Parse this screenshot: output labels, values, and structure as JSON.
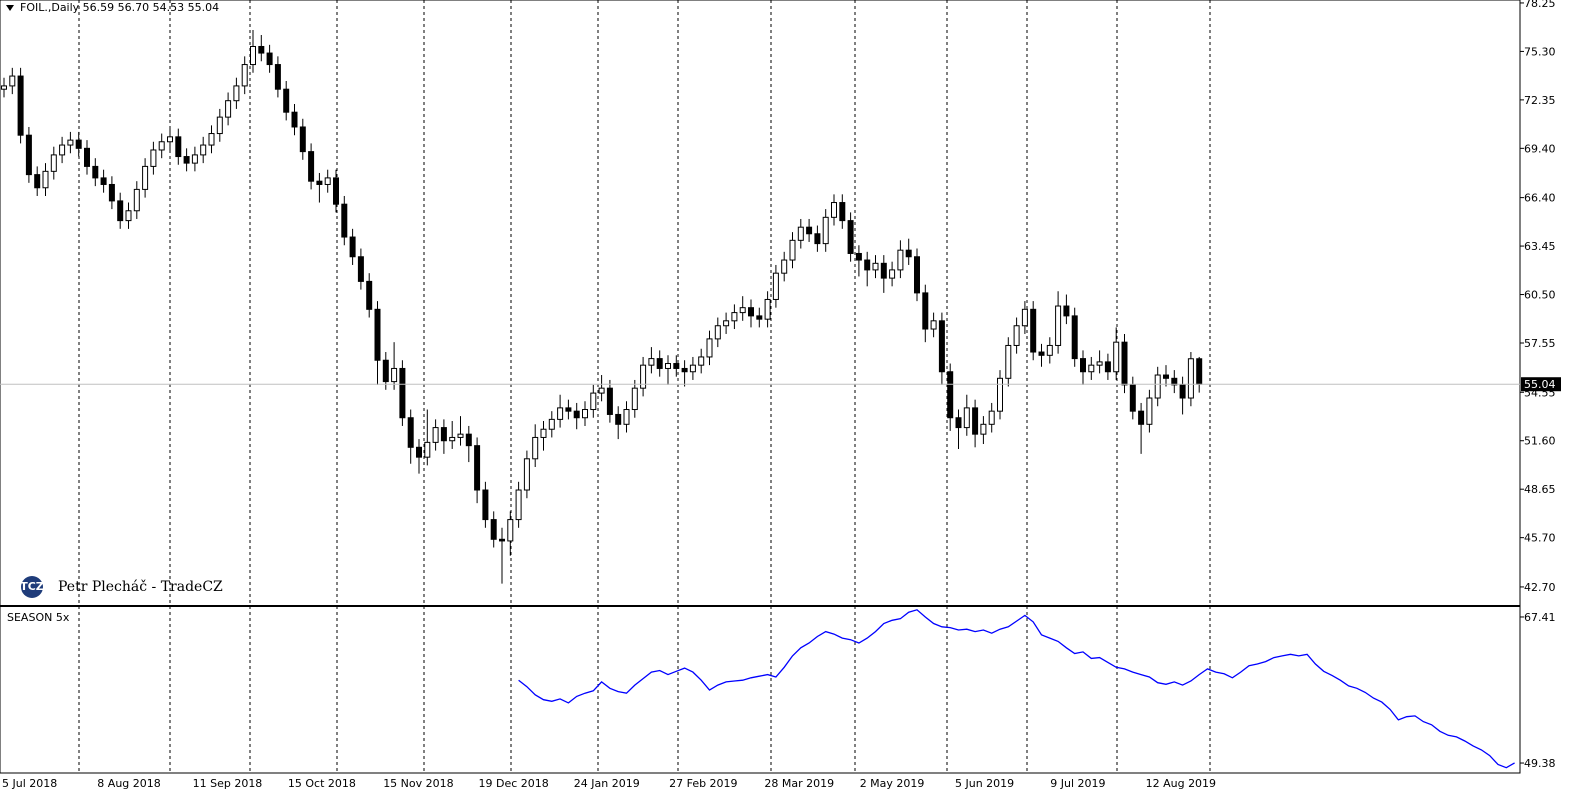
{
  "title": "FOIL.,Daily  56.59 56.70 54.53 55.04",
  "watermark": {
    "logo": "TCZ",
    "text": "Petr Plecháč - TradeCZ"
  },
  "chart_data": [
    {
      "type": "candlestick",
      "open": [
        73.0,
        73.2,
        73.8,
        70.2,
        67.8,
        67.0,
        68.0,
        69.0,
        69.6,
        69.9,
        69.4,
        68.3,
        67.6,
        67.2,
        66.2,
        65.0,
        65.6,
        66.9,
        68.3,
        69.3,
        69.8,
        70.1,
        68.9,
        68.5,
        69.0,
        69.6,
        70.3,
        71.3,
        72.3,
        73.2,
        74.5,
        75.6,
        75.2,
        74.5,
        73.0,
        71.6,
        70.7,
        69.2,
        67.4,
        67.2,
        67.6,
        66.0,
        64.0,
        62.8,
        61.3,
        59.6,
        56.5,
        55.2,
        56.0,
        53.0,
        51.2,
        50.6,
        51.5,
        52.4,
        51.6,
        51.8,
        52.0,
        51.3,
        48.6,
        46.8,
        45.6,
        45.5,
        46.8,
        48.6,
        50.5,
        51.8,
        52.3,
        52.9,
        53.6,
        53.4,
        53.0,
        53.5,
        54.5,
        54.8,
        53.2,
        52.6,
        53.5,
        54.8,
        56.2,
        56.6,
        56.0,
        56.3,
        56.0,
        55.8,
        56.2,
        56.7,
        57.8,
        58.6,
        58.9,
        59.4,
        59.7,
        59.2,
        59.0,
        60.2,
        61.8,
        62.6,
        63.8,
        64.6,
        64.2,
        63.6,
        65.2,
        66.1,
        65.0,
        63.0,
        62.6,
        62.0,
        62.4,
        61.5,
        62.0,
        63.2,
        62.8,
        60.6,
        58.4,
        58.9,
        55.8,
        53.0,
        52.4,
        53.6,
        52.0,
        52.6,
        53.4,
        55.4,
        57.4,
        58.6,
        59.6,
        57.0,
        56.8,
        57.4,
        59.8,
        59.2,
        56.6,
        55.8,
        56.2,
        56.4,
        55.8,
        57.6,
        55.0,
        53.4,
        52.6,
        54.2,
        55.6,
        55.4,
        55.0,
        54.2,
        56.59
      ],
      "high": [
        73.7,
        74.3,
        74.3,
        70.7,
        68.3,
        68.5,
        69.5,
        70.1,
        70.4,
        70.4,
        69.9,
        68.8,
        68.1,
        67.7,
        66.7,
        66.1,
        67.4,
        68.8,
        69.8,
        70.3,
        70.6,
        70.6,
        69.4,
        69.5,
        70.1,
        70.8,
        71.8,
        72.8,
        73.7,
        75.0,
        76.6,
        76.3,
        75.7,
        75.0,
        73.5,
        72.1,
        71.2,
        69.7,
        67.9,
        68.1,
        68.1,
        66.5,
        64.5,
        63.3,
        61.8,
        60.1,
        57.0,
        57.6,
        56.5,
        53.5,
        51.7,
        53.5,
        52.9,
        52.9,
        52.8,
        53.1,
        52.5,
        51.8,
        49.1,
        47.3,
        46.3,
        47.3,
        49.1,
        51.0,
        52.6,
        52.8,
        53.4,
        54.4,
        54.1,
        53.9,
        54.0,
        55.0,
        55.6,
        55.3,
        53.7,
        54.0,
        55.3,
        56.7,
        57.3,
        57.1,
        56.8,
        56.8,
        56.5,
        56.7,
        57.2,
        58.3,
        59.1,
        59.4,
        59.9,
        60.4,
        60.2,
        59.7,
        60.7,
        62.3,
        63.1,
        64.3,
        65.1,
        65.1,
        64.7,
        65.7,
        66.6,
        66.6,
        65.5,
        63.5,
        63.1,
        62.9,
        62.9,
        62.5,
        63.8,
        63.9,
        63.3,
        61.1,
        59.4,
        59.4,
        56.3,
        53.5,
        54.4,
        54.1,
        53.1,
        53.9,
        55.9,
        57.9,
        59.1,
        60.1,
        60.1,
        57.5,
        57.9,
        60.7,
        60.5,
        59.7,
        57.1,
        56.7,
        57.1,
        56.9,
        58.5,
        58.1,
        55.5,
        53.9,
        54.7,
        56.1,
        56.2,
        55.9,
        55.5,
        57.0,
        56.7
      ],
      "low": [
        72.5,
        72.7,
        69.7,
        67.3,
        66.5,
        66.5,
        67.5,
        68.5,
        69.1,
        68.9,
        67.8,
        67.1,
        66.7,
        65.7,
        64.5,
        64.5,
        65.1,
        66.4,
        67.8,
        68.8,
        69.3,
        68.4,
        68.0,
        68.0,
        68.5,
        69.1,
        69.8,
        70.8,
        71.8,
        72.7,
        74.0,
        74.7,
        74.0,
        72.5,
        71.1,
        70.2,
        68.7,
        66.9,
        66.1,
        66.7,
        65.5,
        63.5,
        62.3,
        60.8,
        59.1,
        55.0,
        54.7,
        54.7,
        52.5,
        50.2,
        49.6,
        50.1,
        51.0,
        50.8,
        51.1,
        51.3,
        50.3,
        47.8,
        46.3,
        45.1,
        42.9,
        44.6,
        46.3,
        48.1,
        50.0,
        51.0,
        51.8,
        52.4,
        52.9,
        52.3,
        52.5,
        53.0,
        54.0,
        52.7,
        51.7,
        52.1,
        53.0,
        54.3,
        55.7,
        55.5,
        55.0,
        55.5,
        54.9,
        55.3,
        55.7,
        56.2,
        57.3,
        58.1,
        58.4,
        58.9,
        58.5,
        58.5,
        58.5,
        59.7,
        61.3,
        62.1,
        63.3,
        63.7,
        63.1,
        63.1,
        64.7,
        64.5,
        62.5,
        61.6,
        61.0,
        61.5,
        60.6,
        61.0,
        61.5,
        62.3,
        60.1,
        57.6,
        57.9,
        55.0,
        52.2,
        51.1,
        51.9,
        51.2,
        51.4,
        52.1,
        52.9,
        54.9,
        56.9,
        58.1,
        56.5,
        56.1,
        56.3,
        56.9,
        58.7,
        56.1,
        55.0,
        55.3,
        55.7,
        55.3,
        55.3,
        54.5,
        52.9,
        50.8,
        52.1,
        53.7,
        54.9,
        54.5,
        53.2,
        53.7,
        54.53
      ],
      "close": [
        73.2,
        73.8,
        70.2,
        67.8,
        67.0,
        68.0,
        69.0,
        69.6,
        69.9,
        69.4,
        68.3,
        67.6,
        67.2,
        66.2,
        65.0,
        65.6,
        66.9,
        68.3,
        69.3,
        69.8,
        70.1,
        68.9,
        68.5,
        69.0,
        69.6,
        70.3,
        71.3,
        72.3,
        73.2,
        74.5,
        75.6,
        75.2,
        74.5,
        73.0,
        71.6,
        70.7,
        69.2,
        67.4,
        67.2,
        67.6,
        66.0,
        64.0,
        62.8,
        61.3,
        59.6,
        56.5,
        55.2,
        56.0,
        53.0,
        51.2,
        50.6,
        51.5,
        52.4,
        51.6,
        51.8,
        52.0,
        51.3,
        48.6,
        46.8,
        45.6,
        45.5,
        46.8,
        48.6,
        50.5,
        51.8,
        52.3,
        52.9,
        53.6,
        53.4,
        53.0,
        53.5,
        54.5,
        54.8,
        53.2,
        52.6,
        53.5,
        54.8,
        56.2,
        56.6,
        56.0,
        56.3,
        56.0,
        55.8,
        56.2,
        56.7,
        57.8,
        58.6,
        58.9,
        59.4,
        59.7,
        59.2,
        59.0,
        60.2,
        61.8,
        62.6,
        63.8,
        64.6,
        64.2,
        63.6,
        65.2,
        66.1,
        65.0,
        63.0,
        62.6,
        62.0,
        62.4,
        61.5,
        62.0,
        63.2,
        62.8,
        60.6,
        58.4,
        58.9,
        55.8,
        53.0,
        52.4,
        53.6,
        52.0,
        52.6,
        53.4,
        55.4,
        57.4,
        58.6,
        59.6,
        57.0,
        56.8,
        57.4,
        59.8,
        59.2,
        56.6,
        55.8,
        56.2,
        56.4,
        55.8,
        57.6,
        55.0,
        53.4,
        52.6,
        54.2,
        55.6,
        55.4,
        55.0,
        54.2,
        56.59,
        55.04
      ],
      "ylim": [
        41.6,
        78.43
      ],
      "yticks": [
        {
          "value": 42.7,
          "label": "42.70"
        },
        {
          "value": 45.7,
          "label": "45.70"
        },
        48.65,
        {
          "value": 51.6,
          "label": "51.60"
        },
        54.55,
        57.55,
        {
          "value": 60.5,
          "label": "60.50"
        },
        63.45,
        {
          "value": 66.4,
          "label": "66.40"
        },
        {
          "value": 69.4,
          "label": "69.40"
        },
        72.35,
        {
          "value": 75.3,
          "label": "75.30"
        },
        78.25
      ],
      "last_price": 55.04,
      "x_labels": [
        "5 Jul 2018",
        "8 Aug 2018",
        "11 Sep 2018",
        "15 Oct 2018",
        "15 Nov 2018",
        "19 Dec 2018",
        "24 Jan 2019",
        "27 Feb 2019",
        "28 Mar 2019",
        "2 May 2019",
        "5 Jun 2019",
        "9 Jul 2019",
        "12 Aug 2019"
      ]
    },
    {
      "type": "line",
      "title": "SEASON 5x",
      "color": "#0000ff",
      "values": [
        null,
        null,
        null,
        null,
        null,
        null,
        null,
        null,
        null,
        null,
        null,
        null,
        null,
        null,
        null,
        null,
        null,
        null,
        null,
        null,
        null,
        null,
        null,
        null,
        null,
        null,
        null,
        null,
        null,
        null,
        null,
        null,
        null,
        null,
        null,
        null,
        null,
        null,
        null,
        null,
        null,
        null,
        null,
        null,
        null,
        null,
        null,
        null,
        null,
        null,
        null,
        null,
        null,
        null,
        null,
        null,
        null,
        null,
        null,
        null,
        null,
        null,
        59.6,
        58.8,
        57.8,
        57.2,
        57.0,
        57.3,
        56.8,
        57.6,
        58.0,
        58.3,
        59.4,
        58.6,
        58.2,
        58.0,
        59.0,
        59.8,
        60.6,
        60.8,
        60.3,
        60.7,
        61.1,
        60.6,
        59.6,
        58.4,
        59.0,
        59.4,
        59.5,
        59.6,
        59.9,
        60.1,
        60.3,
        60.0,
        61.2,
        62.6,
        63.6,
        64.2,
        65.0,
        65.6,
        65.3,
        64.8,
        64.6,
        64.2,
        64.8,
        65.6,
        66.6,
        67.0,
        67.2,
        68.0,
        68.3,
        67.4,
        66.6,
        66.2,
        66.1,
        65.8,
        65.9,
        65.6,
        65.8,
        65.4,
        65.9,
        66.2,
        66.9,
        67.6,
        66.8,
        65.2,
        64.8,
        64.4,
        63.6,
        62.9,
        63.1,
        62.3,
        62.4,
        61.8,
        61.2,
        61.0,
        60.6,
        60.3,
        60.0,
        59.3,
        59.1,
        59.4,
        59.0,
        59.5,
        60.3,
        61.0,
        60.6,
        60.4,
        59.9,
        60.6,
        61.4,
        61.6,
        61.9,
        62.4,
        62.6,
        62.8,
        62.6,
        62.8,
        61.6,
        60.7,
        60.2,
        59.6,
        58.9,
        58.6,
        58.1,
        57.4,
        56.9,
        56.0,
        54.7,
        55.1,
        55.2,
        54.5,
        54.1,
        53.3,
        52.8,
        52.6,
        52.1,
        51.5,
        51.0,
        50.3,
        49.2,
        48.8,
        49.4
      ],
      "ylim": [
        48.15,
        68.64
      ],
      "yticks": [
        67.41,
        49.38
      ]
    }
  ]
}
